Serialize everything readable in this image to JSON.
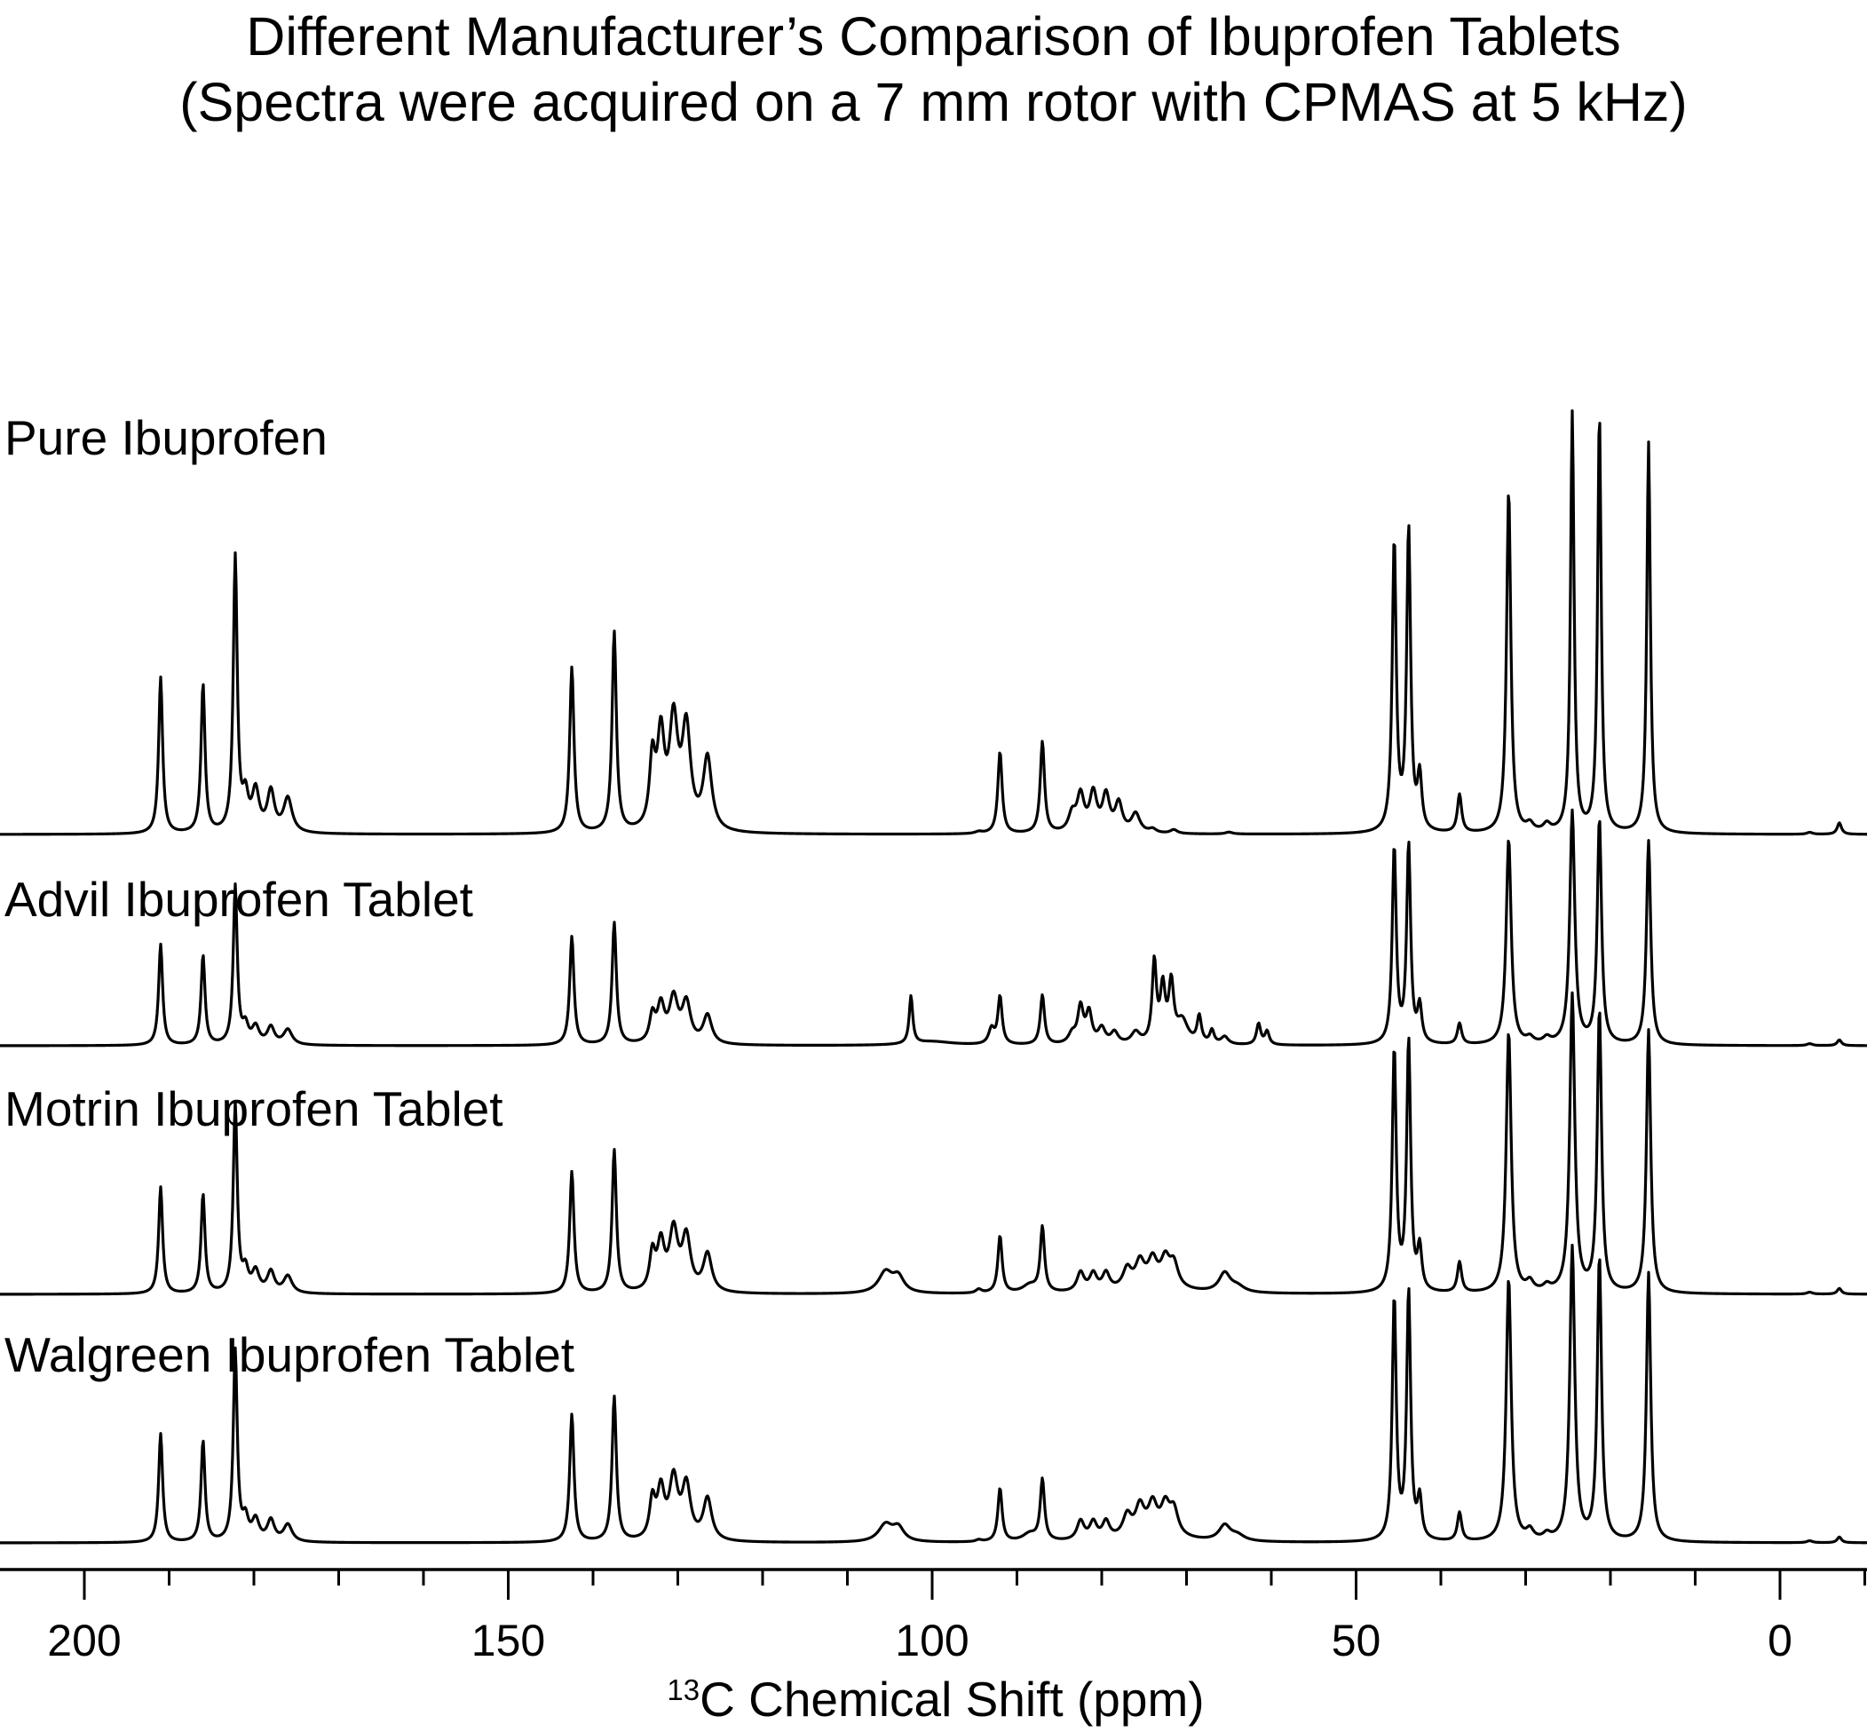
{
  "chart_data": {
    "type": "line",
    "title": "Different Manufacturer’s Comparison of Ibuprofen Tablets",
    "subtitle": "(Spectra were acquired on a 7 mm rotor with CPMAS at 5 kHz)",
    "xlabel_superscript": "13",
    "xlabel": "C Chemical Shift (ppm)",
    "ylabel": "",
    "xlim": [
      210,
      -10
    ],
    "x_reversed": true,
    "x_ticks": [
      200,
      150,
      100,
      50,
      0
    ],
    "minor_tick_step": 10,
    "grid": false,
    "series": [
      {
        "name": "Pure Ibuprofen",
        "peaks": [
          [
            191.0,
            0.82,
            0.28
          ],
          [
            186.0,
            0.78,
            0.28
          ],
          [
            182.2,
            1.44,
            0.28
          ],
          [
            181.0,
            0.17,
            0.4
          ],
          [
            179.8,
            0.21,
            0.5
          ],
          [
            178.0,
            0.21,
            0.5
          ],
          [
            176.0,
            0.18,
            0.6
          ],
          [
            142.5,
            0.87,
            0.3
          ],
          [
            137.5,
            1.05,
            0.3
          ],
          [
            133.0,
            0.35,
            0.4
          ],
          [
            132.0,
            0.47,
            0.5
          ],
          [
            130.5,
            0.55,
            0.6
          ],
          [
            129.0,
            0.52,
            0.6
          ],
          [
            126.5,
            0.38,
            0.6
          ],
          [
            94.5,
            0.01,
            0.5
          ],
          [
            92.0,
            0.43,
            0.3
          ],
          [
            87.0,
            0.48,
            0.3
          ],
          [
            83.5,
            0.09,
            0.5
          ],
          [
            82.5,
            0.19,
            0.5
          ],
          [
            81.0,
            0.2,
            0.5
          ],
          [
            79.5,
            0.19,
            0.5
          ],
          [
            78.0,
            0.15,
            0.5
          ],
          [
            76.0,
            0.1,
            0.6
          ],
          [
            74.0,
            0.02,
            0.5
          ],
          [
            71.5,
            0.02,
            0.5
          ],
          [
            65.0,
            0.01,
            0.5
          ],
          [
            45.5,
            1.52,
            0.28
          ],
          [
            43.8,
            1.58,
            0.28
          ],
          [
            42.5,
            0.28,
            0.3
          ],
          [
            37.8,
            0.2,
            0.3
          ],
          [
            32.0,
            1.8,
            0.3
          ],
          [
            29.5,
            0.04,
            0.5
          ],
          [
            27.5,
            0.04,
            0.5
          ],
          [
            24.5,
            2.2,
            0.25
          ],
          [
            21.3,
            2.2,
            0.25
          ],
          [
            15.5,
            2.05,
            0.25
          ],
          [
            -3.5,
            0.01,
            0.4
          ],
          [
            -7.0,
            0.06,
            0.3
          ]
        ]
      },
      {
        "name": "Advil Ibuprofen Tablet",
        "peaks": [
          [
            191.0,
            0.53,
            0.28
          ],
          [
            186.0,
            0.47,
            0.28
          ],
          [
            182.2,
            0.83,
            0.28
          ],
          [
            181.0,
            0.09,
            0.4
          ],
          [
            179.8,
            0.09,
            0.5
          ],
          [
            178.0,
            0.09,
            0.5
          ],
          [
            176.0,
            0.08,
            0.6
          ],
          [
            142.5,
            0.57,
            0.3
          ],
          [
            137.5,
            0.64,
            0.3
          ],
          [
            133.0,
            0.14,
            0.4
          ],
          [
            132.0,
            0.19,
            0.5
          ],
          [
            130.5,
            0.23,
            0.6
          ],
          [
            129.0,
            0.21,
            0.6
          ],
          [
            126.5,
            0.15,
            0.6
          ],
          [
            102.5,
            0.25,
            0.25
          ],
          [
            100.0,
            0.02,
            3.0
          ],
          [
            93.0,
            0.08,
            0.4
          ],
          [
            92.0,
            0.25,
            0.3
          ],
          [
            87.0,
            0.26,
            0.3
          ],
          [
            83.5,
            0.05,
            0.5
          ],
          [
            82.5,
            0.19,
            0.4
          ],
          [
            81.5,
            0.16,
            0.4
          ],
          [
            80.0,
            0.08,
            0.5
          ],
          [
            78.5,
            0.06,
            0.5
          ],
          [
            76.0,
            0.06,
            0.6
          ],
          [
            73.8,
            0.42,
            0.3
          ],
          [
            72.8,
            0.28,
            0.35
          ],
          [
            71.8,
            0.3,
            0.35
          ],
          [
            70.5,
            0.12,
            0.8
          ],
          [
            68.5,
            0.14,
            0.3
          ],
          [
            67.0,
            0.07,
            0.3
          ],
          [
            65.5,
            0.04,
            0.5
          ],
          [
            61.5,
            0.11,
            0.3
          ],
          [
            60.5,
            0.07,
            0.3
          ],
          [
            45.5,
            1.03,
            0.28
          ],
          [
            43.8,
            1.04,
            0.28
          ],
          [
            42.5,
            0.19,
            0.3
          ],
          [
            37.8,
            0.11,
            0.3
          ],
          [
            32.0,
            1.08,
            0.35
          ],
          [
            29.5,
            0.03,
            0.5
          ],
          [
            27.5,
            0.03,
            0.5
          ],
          [
            24.5,
            1.22,
            0.35
          ],
          [
            21.3,
            1.18,
            0.3
          ],
          [
            15.5,
            1.07,
            0.3
          ],
          [
            -3.5,
            0.01,
            0.4
          ],
          [
            -7.0,
            0.03,
            0.3
          ]
        ]
      },
      {
        "name": "Motrin Ibuprofen Tablet",
        "peaks": [
          [
            191.0,
            0.56,
            0.28
          ],
          [
            186.0,
            0.52,
            0.28
          ],
          [
            182.2,
            0.99,
            0.28
          ],
          [
            181.0,
            0.11,
            0.4
          ],
          [
            179.8,
            0.11,
            0.5
          ],
          [
            178.0,
            0.11,
            0.5
          ],
          [
            176.0,
            0.09,
            0.6
          ],
          [
            142.5,
            0.64,
            0.3
          ],
          [
            137.5,
            0.75,
            0.3
          ],
          [
            133.0,
            0.19,
            0.4
          ],
          [
            132.0,
            0.24,
            0.5
          ],
          [
            130.5,
            0.31,
            0.6
          ],
          [
            129.0,
            0.28,
            0.6
          ],
          [
            126.5,
            0.2,
            0.6
          ],
          [
            105.5,
            0.11,
            1.0
          ],
          [
            104.0,
            0.08,
            0.8
          ],
          [
            94.5,
            0.02,
            0.4
          ],
          [
            92.0,
            0.3,
            0.3
          ],
          [
            87.0,
            0.34,
            0.3
          ],
          [
            88.5,
            0.04,
            1.0
          ],
          [
            82.5,
            0.1,
            0.5
          ],
          [
            81.0,
            0.09,
            0.5
          ],
          [
            79.5,
            0.09,
            0.5
          ],
          [
            77.0,
            0.1,
            0.6
          ],
          [
            75.5,
            0.12,
            0.6
          ],
          [
            74.0,
            0.12,
            0.6
          ],
          [
            72.5,
            0.13,
            0.6
          ],
          [
            71.5,
            0.12,
            0.6
          ],
          [
            74.0,
            0.05,
            3.0
          ],
          [
            65.5,
            0.1,
            0.8
          ],
          [
            64.0,
            0.03,
            1.0
          ],
          [
            45.5,
            1.27,
            0.28
          ],
          [
            43.8,
            1.31,
            0.28
          ],
          [
            42.5,
            0.22,
            0.3
          ],
          [
            37.8,
            0.16,
            0.3
          ],
          [
            32.0,
            1.37,
            0.35
          ],
          [
            29.5,
            0.05,
            0.5
          ],
          [
            27.5,
            0.03,
            0.5
          ],
          [
            24.5,
            1.56,
            0.35
          ],
          [
            21.3,
            1.48,
            0.3
          ],
          [
            15.5,
            1.38,
            0.3
          ],
          [
            -3.5,
            0.01,
            0.4
          ],
          [
            -7.0,
            0.03,
            0.3
          ]
        ]
      },
      {
        "name": "Walgreen Ibuprofen Tablet",
        "peaks": [
          [
            191.0,
            0.57,
            0.28
          ],
          [
            186.0,
            0.53,
            0.28
          ],
          [
            182.2,
            1.0,
            0.28
          ],
          [
            181.0,
            0.11,
            0.4
          ],
          [
            179.8,
            0.11,
            0.5
          ],
          [
            178.0,
            0.11,
            0.5
          ],
          [
            176.0,
            0.09,
            0.6
          ],
          [
            142.5,
            0.67,
            0.3
          ],
          [
            137.5,
            0.76,
            0.3
          ],
          [
            133.0,
            0.2,
            0.4
          ],
          [
            132.0,
            0.25,
            0.5
          ],
          [
            130.5,
            0.31,
            0.6
          ],
          [
            129.0,
            0.28,
            0.6
          ],
          [
            126.5,
            0.22,
            0.6
          ],
          [
            105.5,
            0.09,
            1.0
          ],
          [
            104.0,
            0.07,
            0.8
          ],
          [
            94.5,
            0.01,
            0.4
          ],
          [
            92.0,
            0.28,
            0.3
          ],
          [
            87.0,
            0.32,
            0.3
          ],
          [
            88.5,
            0.04,
            1.0
          ],
          [
            82.5,
            0.1,
            0.5
          ],
          [
            81.0,
            0.09,
            0.5
          ],
          [
            79.5,
            0.09,
            0.5
          ],
          [
            77.0,
            0.11,
            0.6
          ],
          [
            75.5,
            0.14,
            0.6
          ],
          [
            74.0,
            0.14,
            0.6
          ],
          [
            72.5,
            0.14,
            0.6
          ],
          [
            71.5,
            0.13,
            0.6
          ],
          [
            74.0,
            0.05,
            3.0
          ],
          [
            65.5,
            0.08,
            0.8
          ],
          [
            64.0,
            0.03,
            1.0
          ],
          [
            45.5,
            1.27,
            0.28
          ],
          [
            43.8,
            1.3,
            0.28
          ],
          [
            42.5,
            0.21,
            0.3
          ],
          [
            37.8,
            0.15,
            0.3
          ],
          [
            32.0,
            1.38,
            0.35
          ],
          [
            29.5,
            0.05,
            0.5
          ],
          [
            27.5,
            0.03,
            0.5
          ],
          [
            24.5,
            1.54,
            0.35
          ],
          [
            21.3,
            1.49,
            0.3
          ],
          [
            15.5,
            1.41,
            0.3
          ],
          [
            -3.5,
            0.01,
            0.4
          ],
          [
            -7.0,
            0.03,
            0.3
          ]
        ]
      }
    ]
  }
}
